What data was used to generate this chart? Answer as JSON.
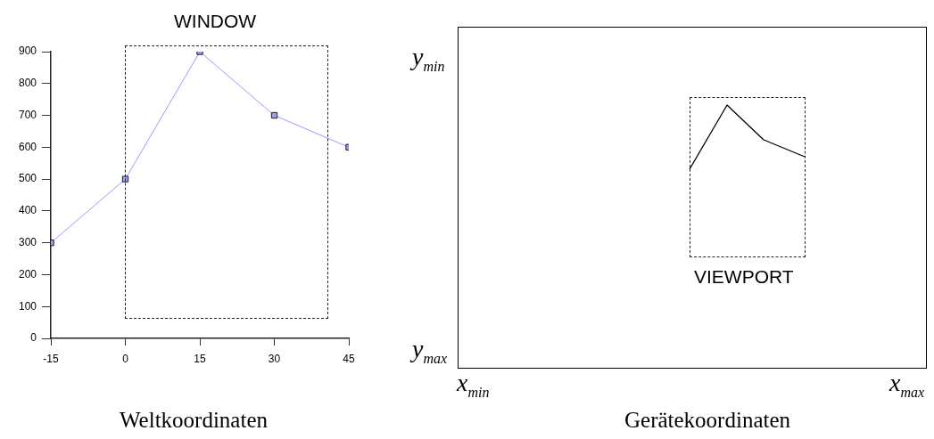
{
  "chart_data": [
    {
      "type": "line",
      "xlabel": "Weltkoordinaten",
      "annotations": [
        "WINDOW"
      ],
      "x": [
        -15,
        0,
        15,
        30,
        45
      ],
      "series": [
        {
          "color": "#9999ff",
          "values": [
            300,
            500,
            900,
            700,
            600
          ]
        }
      ],
      "xlim": [
        -15,
        45
      ],
      "xticks": [
        -15,
        0,
        15,
        30,
        45
      ],
      "ylim": [
        0,
        900
      ],
      "yticks": [
        0,
        100,
        200,
        300,
        400,
        500,
        600,
        700,
        800,
        900
      ],
      "grid": false,
      "legend": false,
      "marker": "square",
      "line_style": "solid"
    },
    {
      "type": "other",
      "xlabel": "Gerätekoordinaten",
      "annotations": [
        "VIEWPORT",
        "y$_{min}$",
        "y$_{max}$",
        "x$_{min}$",
        "x$_{max}$"
      ]
    }
  ]
}
